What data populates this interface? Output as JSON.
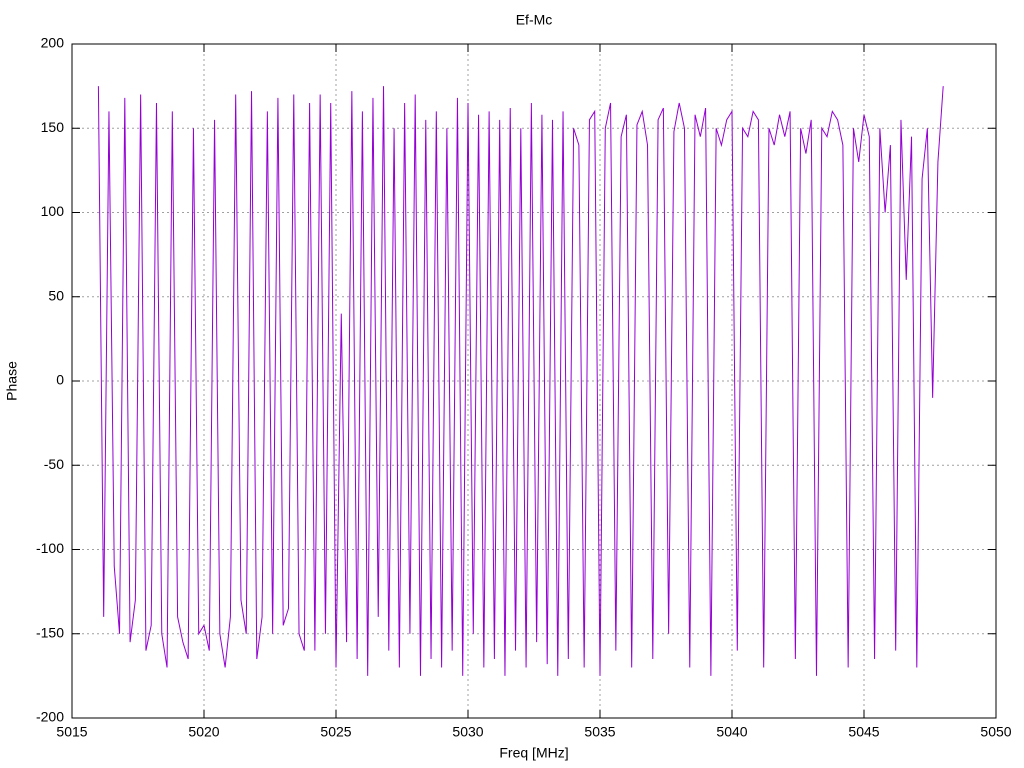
{
  "chart_data": {
    "type": "line",
    "title": "Ef-Mc",
    "xlabel": "Freq [MHz]",
    "ylabel": "Phase",
    "xlim": [
      5015,
      5050
    ],
    "xticks": [
      5015,
      5020,
      5025,
      5030,
      5035,
      5040,
      5045,
      5050
    ],
    "ylim": [
      -200,
      200
    ],
    "yticks": [
      -200,
      -150,
      -100,
      -50,
      0,
      50,
      100,
      150,
      200
    ],
    "grid": true,
    "x": [
      5016,
      5016.2,
      5016.4,
      5016.6,
      5016.8,
      5017,
      5017.2,
      5017.4,
      5017.6,
      5017.8,
      5018,
      5018.2,
      5018.4,
      5018.6,
      5018.8,
      5019,
      5019.2,
      5019.4,
      5019.6,
      5019.8,
      5020,
      5020.2,
      5020.4,
      5020.6,
      5020.8,
      5021,
      5021.2,
      5021.4,
      5021.6,
      5021.8,
      5022,
      5022.2,
      5022.4,
      5022.6,
      5022.8,
      5023,
      5023.2,
      5023.4,
      5023.6,
      5023.8,
      5024,
      5024.2,
      5024.4,
      5024.6,
      5024.8,
      5025,
      5025.2,
      5025.4,
      5025.6,
      5025.8,
      5026,
      5026.2,
      5026.4,
      5026.6,
      5026.8,
      5027,
      5027.2,
      5027.4,
      5027.6,
      5027.8,
      5028,
      5028.2,
      5028.4,
      5028.6,
      5028.8,
      5029,
      5029.2,
      5029.4,
      5029.6,
      5029.8,
      5030,
      5030.2,
      5030.4,
      5030.6,
      5030.8,
      5031,
      5031.2,
      5031.4,
      5031.6,
      5031.8,
      5032,
      5032.2,
      5032.4,
      5032.6,
      5032.8,
      5033,
      5033.2,
      5033.4,
      5033.6,
      5033.8,
      5034,
      5034.2,
      5034.4,
      5034.6,
      5034.8,
      5035,
      5035.2,
      5035.4,
      5035.6,
      5035.8,
      5036,
      5036.2,
      5036.4,
      5036.6,
      5036.8,
      5037,
      5037.2,
      5037.4,
      5037.6,
      5037.8,
      5038,
      5038.2,
      5038.4,
      5038.6,
      5038.8,
      5039,
      5039.2,
      5039.4,
      5039.6,
      5039.8,
      5040,
      5040.2,
      5040.4,
      5040.6,
      5040.8,
      5041,
      5041.2,
      5041.4,
      5041.6,
      5041.8,
      5042,
      5042.2,
      5042.4,
      5042.6,
      5042.8,
      5043,
      5043.2,
      5043.4,
      5043.6,
      5043.8,
      5044,
      5044.2,
      5044.4,
      5044.6,
      5044.8,
      5045,
      5045.2,
      5045.4,
      5045.6,
      5045.8,
      5046,
      5046.2,
      5046.4,
      5046.6,
      5046.8,
      5047,
      5047.2,
      5047.4,
      5047.6,
      5047.8,
      5048
    ],
    "series": [
      {
        "name": "Ef-Mc",
        "color": "#9400d3",
        "values": [
          175,
          -140,
          160,
          -110,
          -150,
          168,
          -155,
          -130,
          170,
          -160,
          -145,
          165,
          -150,
          -170,
          160,
          -140,
          -155,
          -165,
          150,
          -150,
          -145,
          -160,
          155,
          -150,
          -170,
          -140,
          170,
          -130,
          -150,
          172,
          -165,
          -140,
          160,
          -150,
          168,
          -145,
          -135,
          170,
          -150,
          -160,
          165,
          -160,
          170,
          -150,
          165,
          -170,
          40,
          -155,
          172,
          -165,
          160,
          -175,
          168,
          -140,
          175,
          -160,
          150,
          -170,
          165,
          -150,
          170,
          -175,
          155,
          -165,
          160,
          -170,
          150,
          -160,
          168,
          -175,
          165,
          -150,
          158,
          -170,
          160,
          -165,
          155,
          -175,
          162,
          -160,
          150,
          -170,
          165,
          -155,
          158,
          -168,
          155,
          -175,
          160,
          -165,
          150,
          140,
          -170,
          155,
          160,
          -175,
          150,
          165,
          -160,
          145,
          158,
          -170,
          152,
          160,
          140,
          -165,
          155,
          162,
          -150,
          148,
          165,
          150,
          -170,
          158,
          145,
          162,
          -175,
          150,
          140,
          155,
          160,
          -160,
          150,
          145,
          160,
          155,
          -170,
          150,
          140,
          158,
          145,
          160,
          -165,
          150,
          135,
          155,
          -175,
          150,
          145,
          160,
          155,
          140,
          -170,
          150,
          130,
          158,
          145,
          -165,
          150,
          100,
          140,
          -160,
          155,
          60,
          145,
          -170,
          120,
          150,
          -10,
          130,
          175
        ]
      }
    ]
  }
}
